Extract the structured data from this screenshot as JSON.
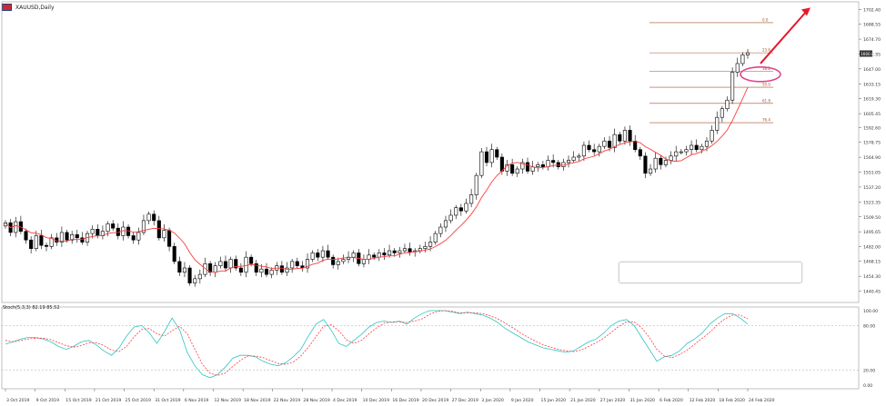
{
  "header": {
    "symbol_title": "XAUUSD,Daily"
  },
  "stoch_label": "Stoch(5,3,3) 82.19 85.52",
  "colors": {
    "up": "#ffffff",
    "down": "#000000",
    "ma": "#ff3b3b",
    "k": "#2ec4c4",
    "d": "#ff3b3b",
    "fib": "#a0522d",
    "arrow": "#e8162b",
    "ellipse": "#e0458a"
  },
  "chart_data": [
    {
      "type": "candlestick",
      "title": "",
      "ylim": [
        1435,
        1706
      ],
      "price_ticks": [
        "1702.40",
        "1688.55",
        "1674.70",
        "1660.85",
        "1647.00",
        "1633.15",
        "1619.30",
        "1605.45",
        "1592.60",
        "1578.75",
        "1564.90",
        "1551.05",
        "1537.20",
        "1523.35",
        "1509.50",
        "1495.65",
        "1482.00",
        "1468.15",
        "1454.30",
        "1440.45"
      ],
      "current_price": "1660.85",
      "x_labels": [
        "3 Oct 2019",
        "9 Oct 2019",
        "15 Oct 2019",
        "21 Oct 2019",
        "25 Oct 2019",
        "31 Oct 2019",
        "6 Nov 2019",
        "12 Nov 2019",
        "18 Nov 2019",
        "22 Nov 2019",
        "28 Nov 2019",
        "4 Dec 2019",
        "10 Dec 2019",
        "16 Dec 2019",
        "20 Dec 2019",
        "27 Dec 2019",
        "3 Jan 2020",
        "9 Jan 2020",
        "15 Jan 2020",
        "21 Jan 2020",
        "27 Jan 2020",
        "31 Jan 2020",
        "6 Feb 2020",
        "12 Feb 2020",
        "18 Feb 2020",
        "24 Feb 2020"
      ],
      "close": [
        1504,
        1495,
        1505,
        1496,
        1488,
        1480,
        1492,
        1483,
        1482,
        1490,
        1486,
        1495,
        1488,
        1493,
        1490,
        1486,
        1494,
        1498,
        1492,
        1496,
        1503,
        1499,
        1492,
        1500,
        1492,
        1488,
        1495,
        1506,
        1512,
        1506,
        1490,
        1497,
        1482,
        1468,
        1458,
        1462,
        1448,
        1452,
        1456,
        1466,
        1458,
        1464,
        1468,
        1462,
        1470,
        1462,
        1458,
        1472,
        1466,
        1458,
        1461,
        1456,
        1460,
        1464,
        1458,
        1462,
        1468,
        1464,
        1462,
        1470,
        1476,
        1472,
        1478,
        1472,
        1465,
        1468,
        1470,
        1472,
        1476,
        1466,
        1470,
        1474,
        1472,
        1476,
        1474,
        1478,
        1476,
        1478,
        1480,
        1477,
        1478,
        1480,
        1482,
        1486,
        1494,
        1500,
        1506,
        1511,
        1518,
        1515,
        1522,
        1530,
        1548,
        1570,
        1560,
        1572,
        1565,
        1552,
        1558,
        1550,
        1554,
        1560,
        1552,
        1556,
        1558,
        1556,
        1562,
        1560,
        1556,
        1560,
        1562,
        1565,
        1566,
        1576,
        1572,
        1570,
        1575,
        1580,
        1574,
        1586,
        1580,
        1590,
        1580,
        1572,
        1566,
        1550,
        1554,
        1564,
        1558,
        1562,
        1566,
        1570,
        1570,
        1572,
        1576,
        1572,
        1575,
        1580,
        1590,
        1602,
        1610,
        1618,
        1644,
        1652,
        1660,
        1662
      ],
      "ma_period": 8,
      "fibonacci": [
        {
          "label": "0.0",
          "value": 1690
        },
        {
          "label": "23.6",
          "value": 1662
        },
        {
          "label": "38.2",
          "value": 1645
        },
        {
          "label": "50.0",
          "value": 1630
        },
        {
          "label": "61.8",
          "value": 1615
        },
        {
          "label": "76.4",
          "value": 1597
        }
      ]
    },
    {
      "type": "line",
      "title": "Stoch(5,3,3) 82.19 85.52",
      "ylim": [
        0,
        100
      ],
      "y_ticks": [
        "100.00",
        "80.00",
        "20.00",
        "0.00"
      ],
      "k": [
        55,
        58,
        62,
        64,
        64,
        62,
        58,
        52,
        48,
        52,
        58,
        60,
        54,
        46,
        40,
        50,
        66,
        78,
        80,
        70,
        56,
        72,
        90,
        74,
        44,
        26,
        14,
        10,
        14,
        24,
        36,
        40,
        40,
        38,
        32,
        28,
        26,
        30,
        38,
        48,
        66,
        82,
        88,
        74,
        56,
        52,
        60,
        68,
        78,
        84,
        86,
        84,
        86,
        82,
        90,
        96,
        100,
        100,
        100,
        98,
        96,
        98,
        96,
        94,
        90,
        84,
        76,
        70,
        64,
        58,
        54,
        50,
        48,
        46,
        44,
        46,
        52,
        58,
        62,
        70,
        80,
        86,
        88,
        80,
        64,
        48,
        32,
        38,
        40,
        46,
        56,
        62,
        70,
        82,
        90,
        96,
        96,
        90,
        82
      ],
      "d": [
        60,
        58,
        60,
        62,
        63,
        63,
        61,
        57,
        53,
        51,
        53,
        57,
        57,
        53,
        47,
        45,
        52,
        65,
        75,
        76,
        69,
        66,
        73,
        79,
        69,
        48,
        28,
        16,
        13,
        16,
        25,
        33,
        39,
        39,
        37,
        33,
        29,
        28,
        31,
        39,
        51,
        65,
        79,
        81,
        73,
        61,
        56,
        60,
        69,
        77,
        83,
        85,
        85,
        84,
        86,
        89,
        95,
        99,
        100,
        99,
        97,
        97,
        97,
        96,
        93,
        89,
        83,
        77,
        70,
        64,
        59,
        54,
        51,
        48,
        46,
        45,
        47,
        52,
        57,
        63,
        71,
        79,
        85,
        85,
        77,
        64,
        48,
        39,
        37,
        41,
        47,
        55,
        63,
        71,
        81,
        89,
        94,
        94,
        89
      ]
    }
  ]
}
